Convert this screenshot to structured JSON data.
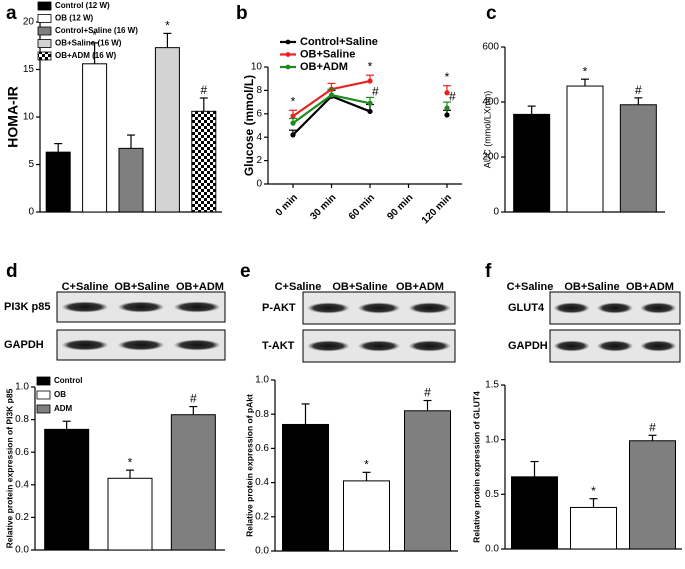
{
  "chart_data": [
    {
      "type": "bar",
      "label": "a",
      "ylabel": "HOMA-IR",
      "categories": [
        "Control (12 W)",
        "OB (12 W)",
        "Control+Saline (16 W)",
        "OB+Saline (16 W)",
        "OB+ADM (16 W)"
      ],
      "values": [
        6.3,
        15.6,
        6.7,
        17.3,
        10.6
      ],
      "errors": [
        0.9,
        2.2,
        1.4,
        1.5,
        1.4
      ],
      "colors": [
        "#000000",
        "#ffffff",
        "#7f7f7f",
        "#d3d3d3",
        "checker"
      ],
      "sig": [
        null,
        "*",
        null,
        "*",
        "#"
      ],
      "ylim": [
        0,
        20
      ],
      "yticks": [
        0,
        5,
        10,
        15,
        20
      ]
    },
    {
      "type": "line",
      "label": "b",
      "ylabel": "Glucose (mmol/L)",
      "categories": [
        "0 min",
        "30 min",
        "60 min",
        "90 min",
        "120 min"
      ],
      "series": [
        {
          "name": "Control+Saline",
          "color": "#000000",
          "values": [
            4.2,
            7.5,
            6.2,
            null,
            5.9
          ],
          "errors": [
            0.4,
            0.5,
            0.6,
            null,
            0.4
          ],
          "sig": [
            null,
            null,
            null,
            null,
            null
          ]
        },
        {
          "name": "OB+Saline",
          "color": "#e8231f",
          "values": [
            5.8,
            8.1,
            8.8,
            null,
            7.8
          ],
          "errors": [
            0.5,
            0.5,
            0.5,
            null,
            0.6
          ],
          "sig": [
            "*",
            null,
            "*",
            null,
            "*"
          ]
        },
        {
          "name": "OB+ADM",
          "color": "#1f8a1f",
          "values": [
            5.2,
            7.6,
            6.9,
            null,
            6.5
          ],
          "errors": [
            0.4,
            0.5,
            0.5,
            null,
            0.5
          ],
          "sig": [
            null,
            null,
            "#",
            null,
            "#"
          ]
        }
      ],
      "ylim": [
        0,
        10
      ],
      "yticks": [
        0,
        2,
        4,
        6,
        8,
        10
      ]
    },
    {
      "type": "bar",
      "label": "c",
      "ylabel": "AUC (mmol/LXmin)",
      "values": [
        355,
        458,
        390
      ],
      "errors": [
        30,
        25,
        25
      ],
      "colors": [
        "#000000",
        "#ffffff",
        "#7f7f7f"
      ],
      "sig": [
        null,
        "*",
        "#"
      ],
      "ylim": [
        0,
        600
      ],
      "yticks": [
        0,
        200,
        400,
        600
      ]
    },
    {
      "type": "bar",
      "label": "d",
      "ylabel": "Relative protein expression of PI3K p85",
      "blot": {
        "lanes": [
          "C+Saline",
          "OB+Saline",
          "OB+ADM"
        ],
        "rows": [
          "PI3K p85",
          "GAPDH"
        ]
      },
      "legend": [
        "Control",
        "OB",
        "ADM"
      ],
      "values": [
        0.74,
        0.44,
        0.83
      ],
      "errors": [
        0.05,
        0.05,
        0.05
      ],
      "colors": [
        "#000000",
        "#ffffff",
        "#7f7f7f"
      ],
      "sig": [
        null,
        "*",
        "#"
      ],
      "ylim": [
        0,
        1.0
      ],
      "yticks": [
        {
          "value": 0,
          "label": "0.0"
        },
        0.2,
        0.4,
        0.6,
        0.8,
        {
          "value": 1,
          "label": "1.0"
        }
      ]
    },
    {
      "type": "bar",
      "label": "e",
      "ylabel": "Relative protein expression of pAkt",
      "blot": {
        "lanes": [
          "C+Saline",
          "OB+Saline",
          "OB+ADM"
        ],
        "rows": [
          "P-AKT",
          "T-AKT"
        ]
      },
      "values": [
        0.74,
        0.41,
        0.82
      ],
      "errors": [
        0.12,
        0.05,
        0.06
      ],
      "colors": [
        "#000000",
        "#ffffff",
        "#7f7f7f"
      ],
      "sig": [
        null,
        "*",
        "#"
      ],
      "ylim": [
        0,
        1.0
      ],
      "yticks": [
        {
          "value": 0,
          "label": "0.0"
        },
        0.2,
        0.4,
        0.6,
        0.8,
        {
          "value": 1,
          "label": "1.0"
        }
      ]
    },
    {
      "type": "bar",
      "label": "f",
      "ylabel": "Relative protein expression of GLUT4",
      "blot": {
        "lanes": [
          "C+Saline",
          "OB+Saline",
          "OB+ADM"
        ],
        "rows": [
          "GLUT4",
          "GAPDH"
        ]
      },
      "values": [
        0.66,
        0.38,
        0.99
      ],
      "errors": [
        0.14,
        0.08,
        0.05
      ],
      "colors": [
        "#000000",
        "#ffffff",
        "#7f7f7f"
      ],
      "sig": [
        null,
        "*",
        "#"
      ],
      "ylim": [
        0,
        1.5
      ],
      "yticks": [
        {
          "value": 0,
          "label": "0.0"
        },
        0.5,
        {
          "value": 1,
          "label": "1.0"
        },
        1.5
      ]
    }
  ]
}
